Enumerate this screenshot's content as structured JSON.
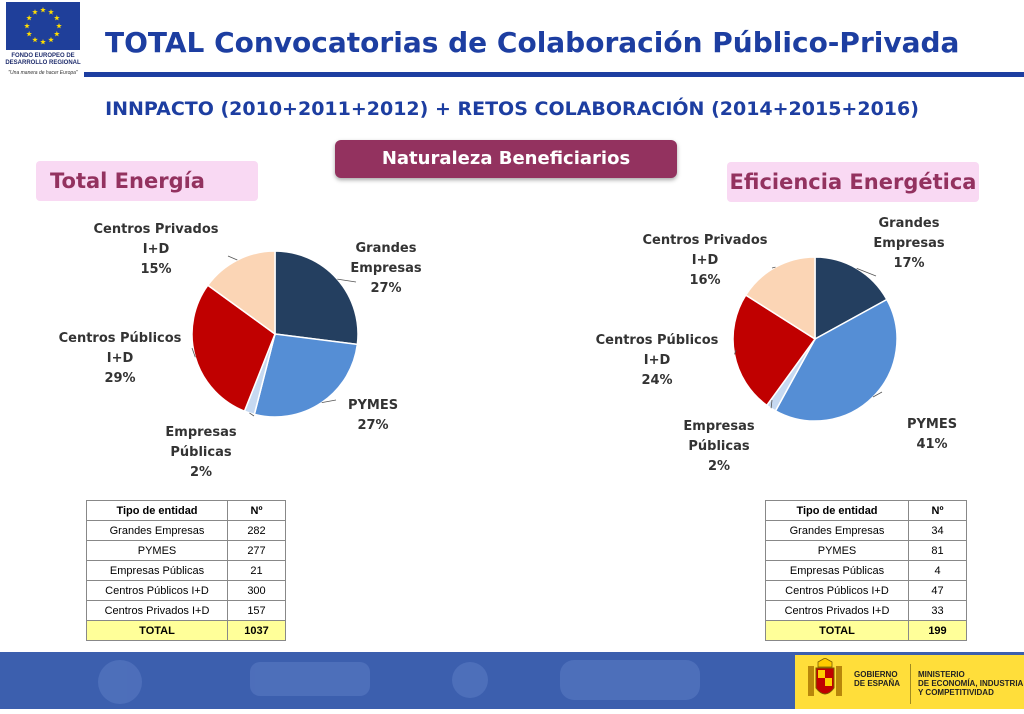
{
  "header": {
    "title": "TOTAL Convocatorias de Colaboración Público-Privada",
    "subtitle": "INNPACTO (2010+2011+2012) + RETOS COLABORACIÓN (2014+2015+2016)",
    "center_label": "Naturaleza Beneficiarios"
  },
  "eu_logo": {
    "line1": "FONDO EUROPEO DE",
    "line2": "DESARROLLO REGIONAL",
    "motto": "\"Una manera de hacer Europa\""
  },
  "footer": {
    "gov_line1": "GOBIERNO",
    "gov_line2": "DE ESPAÑA",
    "ministry_line1": "MINISTERIO",
    "ministry_line2": "DE ECONOMÍA, INDUSTRIA",
    "ministry_line3": "Y COMPETITIVIDAD"
  },
  "colors": {
    "grandes": "#243f60",
    "pymes": "#558ed5",
    "publicas": "#c6d9f1",
    "cpublicos": "#c00000",
    "cprivados": "#fbd5b5"
  },
  "chart_data": [
    {
      "type": "pie",
      "title": "Total Energía",
      "categories": [
        "Grandes Empresas",
        "PYMES",
        "Empresas Públicas",
        "Centros Públicos I+D",
        "Centros Privados I+D"
      ],
      "values": [
        27,
        27,
        2,
        29,
        15
      ],
      "labels": [
        [
          "Grandes",
          "Empresas",
          "27%"
        ],
        [
          "PYMES",
          "27%"
        ],
        [
          "Empresas",
          "Públicas",
          "2%"
        ],
        [
          "Centros Públicos",
          "I+D",
          "29%"
        ],
        [
          "Centros Privados",
          "I+D",
          "15%"
        ]
      ],
      "table": {
        "headers": [
          "Tipo de entidad",
          "Nº"
        ],
        "rows": [
          [
            "Grandes Empresas",
            "282"
          ],
          [
            "PYMES",
            "277"
          ],
          [
            "Empresas Públicas",
            "21"
          ],
          [
            "Centros Públicos I+D",
            "300"
          ],
          [
            "Centros Privados I+D",
            "157"
          ]
        ],
        "total": [
          "TOTAL",
          "1037"
        ]
      }
    },
    {
      "type": "pie",
      "title": "Eficiencia Energética",
      "categories": [
        "Grandes Empresas",
        "PYMES",
        "Empresas Públicas",
        "Centros Públicos I+D",
        "Centros Privados I+D"
      ],
      "values": [
        17,
        41,
        2,
        24,
        16
      ],
      "labels": [
        [
          "Grandes",
          "Empresas",
          "17%"
        ],
        [
          "PYMES",
          "41%"
        ],
        [
          "Empresas",
          "Públicas",
          "2%"
        ],
        [
          "Centros Públicos",
          "I+D",
          "24%"
        ],
        [
          "Centros Privados",
          "I+D",
          "16%"
        ]
      ],
      "table": {
        "headers": [
          "Tipo de entidad",
          "Nº"
        ],
        "rows": [
          [
            "Grandes Empresas",
            "34"
          ],
          [
            "PYMES",
            "81"
          ],
          [
            "Empresas Públicas",
            "4"
          ],
          [
            "Centros Públicos I+D",
            "47"
          ],
          [
            "Centros Privados I+D",
            "33"
          ]
        ],
        "total": [
          "TOTAL",
          "199"
        ]
      }
    }
  ]
}
